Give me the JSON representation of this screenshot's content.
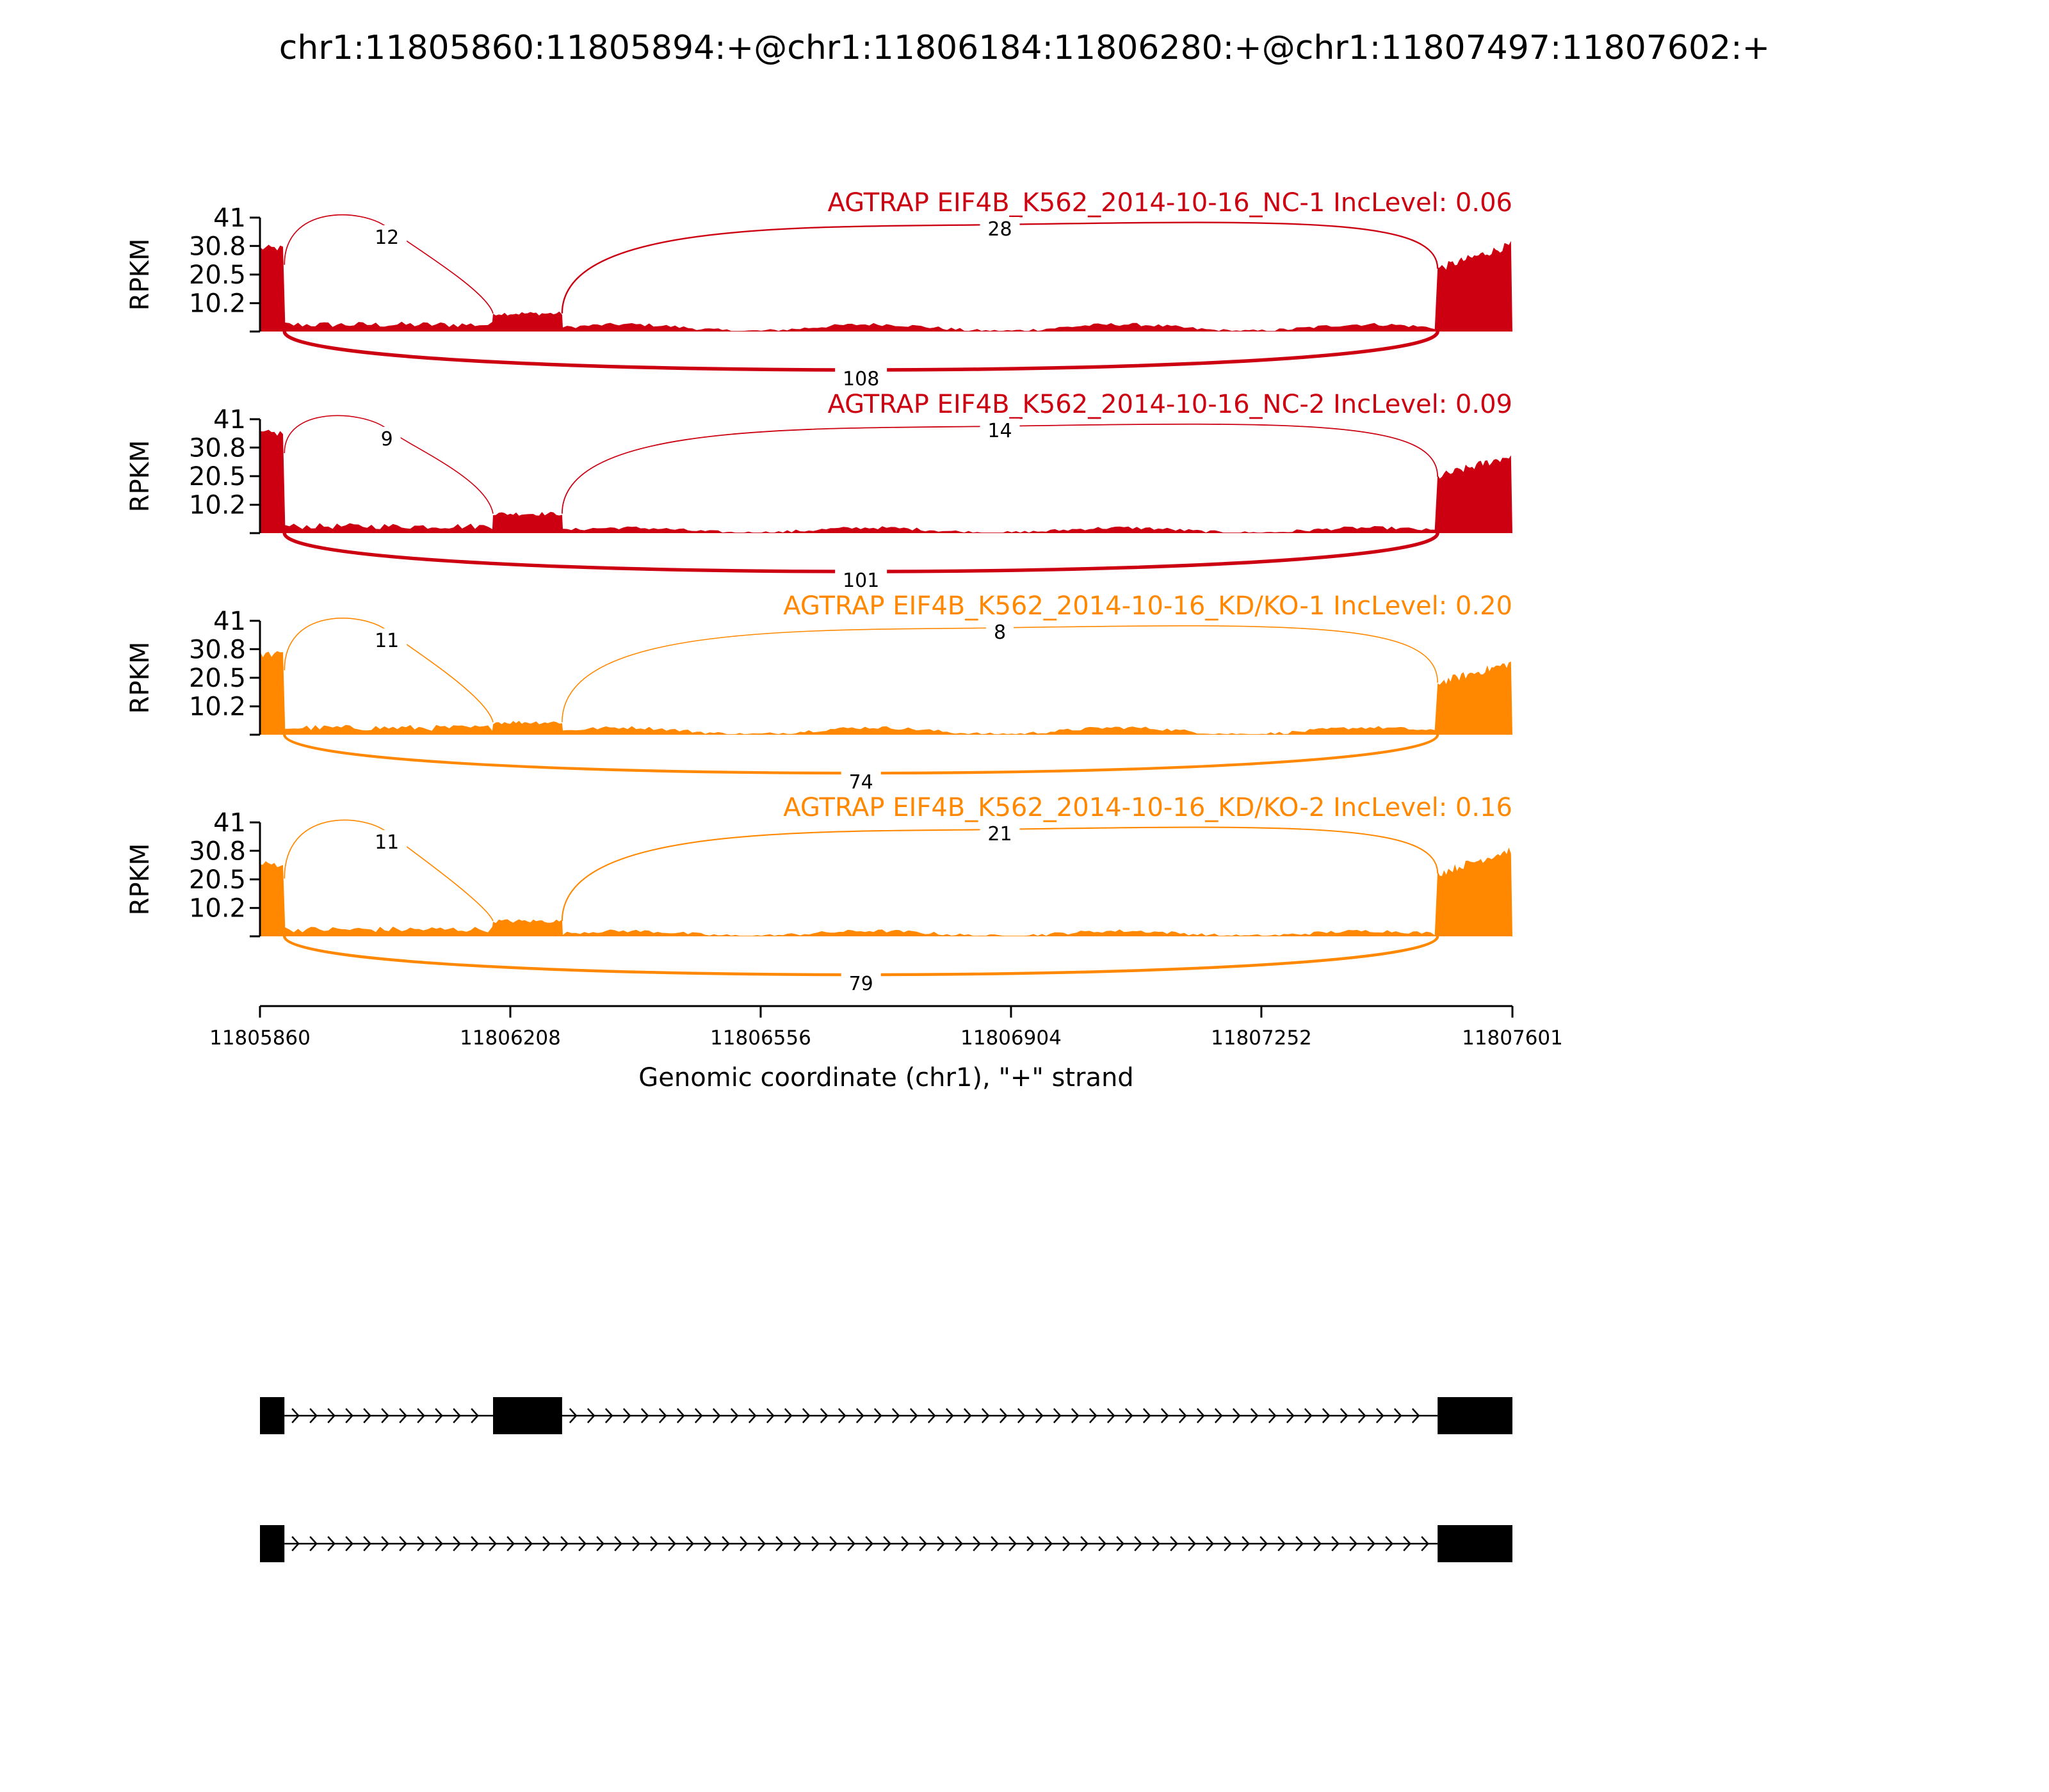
{
  "chart_data": {
    "type": "sashimi",
    "title": "chr1:11805860:11805894:+@chr1:11806184:11806280:+@chr1:11807497:11807602:+",
    "xlabel": "Genomic coordinate (chr1), \"+\" strand",
    "ylabel": "RPKM",
    "xlim": [
      11805860,
      11807601
    ],
    "xticks": [
      "11805860",
      "11806208",
      "11806556",
      "11806904",
      "11807252",
      "11807601"
    ],
    "ylim": [
      0,
      41
    ],
    "yticks": [
      "10.2",
      "20.5",
      "30.8",
      "41"
    ],
    "exons": [
      [
        11805860,
        11805894
      ],
      [
        11806184,
        11806280
      ],
      [
        11807497,
        11807602
      ]
    ],
    "colors": {
      "NC": "#cc0011",
      "KD": "#ff8800"
    },
    "samples": [
      {
        "label": "AGTRAP EIF4B_K562_2014-10-16_NC-1 IncLevel: 0.06",
        "color": "#cc0011",
        "exon_coverage": [
          30,
          6.5,
          29
        ],
        "intron_coverage": [
          2.5,
          2,
          2
        ],
        "junctions": [
          {
            "from": 11805894,
            "to": 11806184,
            "count": "12",
            "side": "above"
          },
          {
            "from": 11806280,
            "to": 11807497,
            "count": "28",
            "side": "above"
          },
          {
            "from": 11805894,
            "to": 11807497,
            "count": "108",
            "side": "below"
          }
        ]
      },
      {
        "label": "AGTRAP EIF4B_K562_2014-10-16_NC-2 IncLevel: 0.09",
        "color": "#cc0011",
        "exon_coverage": [
          36,
          7,
          26
        ],
        "intron_coverage": [
          2.5,
          1.5,
          1.2
        ],
        "junctions": [
          {
            "from": 11805894,
            "to": 11806184,
            "count": "9",
            "side": "above"
          },
          {
            "from": 11806280,
            "to": 11807497,
            "count": "14",
            "side": "above"
          },
          {
            "from": 11805894,
            "to": 11807497,
            "count": "101",
            "side": "below"
          }
        ]
      },
      {
        "label": "AGTRAP EIF4B_K562_2014-10-16_KD/KO-1 IncLevel: 0.20",
        "color": "#ff8800",
        "exon_coverage": [
          29,
          4.5,
          24
        ],
        "intron_coverage": [
          2.5,
          2,
          1.5
        ],
        "junctions": [
          {
            "from": 11805894,
            "to": 11806184,
            "count": "11",
            "side": "above"
          },
          {
            "from": 11806280,
            "to": 11807497,
            "count": "8",
            "side": "above"
          },
          {
            "from": 11805894,
            "to": 11807497,
            "count": "74",
            "side": "below"
          }
        ]
      },
      {
        "label": "AGTRAP EIF4B_K562_2014-10-16_KD/KO-2 IncLevel: 0.16",
        "color": "#ff8800",
        "exon_coverage": [
          26,
          5.5,
          29
        ],
        "intron_coverage": [
          2.5,
          1.5,
          2
        ],
        "junctions": [
          {
            "from": 11805894,
            "to": 11806184,
            "count": "11",
            "side": "above"
          },
          {
            "from": 11806280,
            "to": 11807497,
            "count": "21",
            "side": "above"
          },
          {
            "from": 11805894,
            "to": 11807497,
            "count": "79",
            "side": "below"
          }
        ]
      }
    ],
    "isoforms": [
      {
        "exons": [
          [
            11805860,
            11805894
          ],
          [
            11806184,
            11806280
          ],
          [
            11807497,
            11807602
          ]
        ]
      },
      {
        "exons": [
          [
            11805860,
            11805894
          ],
          [
            11807497,
            11807602
          ]
        ]
      }
    ]
  }
}
